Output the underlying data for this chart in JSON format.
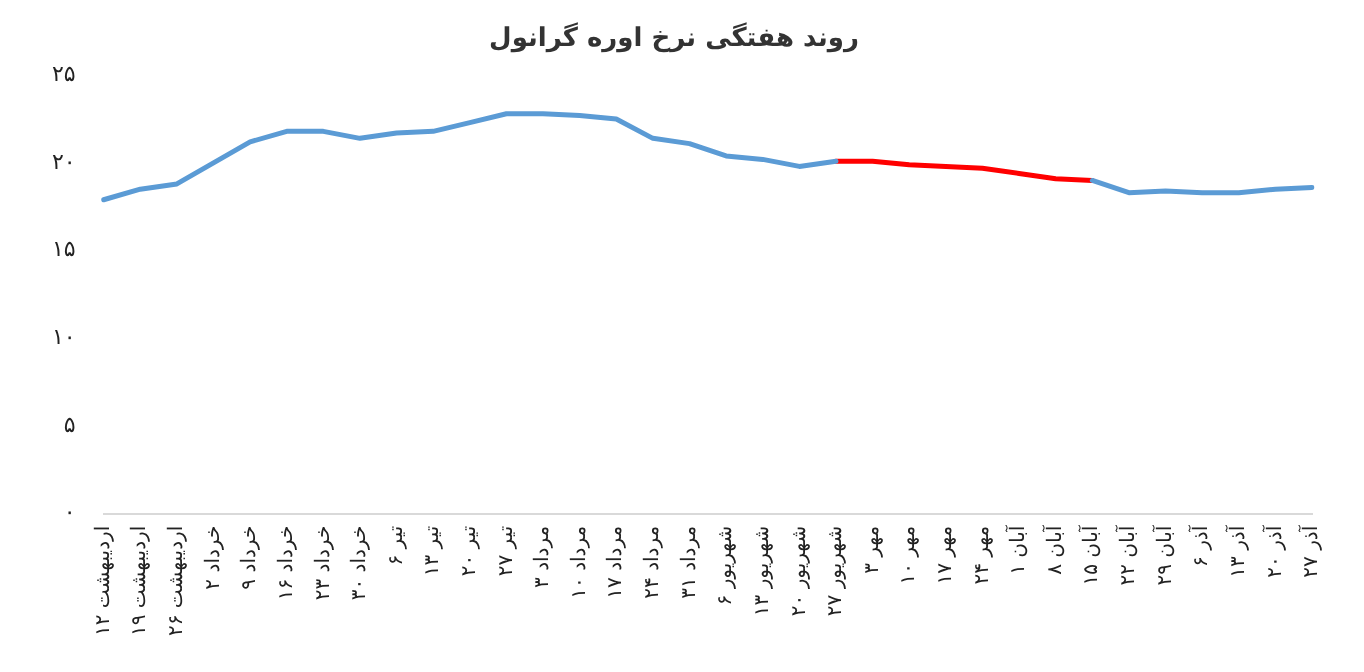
{
  "chart_data": {
    "type": "line",
    "title": "روند هفتگی نرخ اوره گرانول",
    "categories": [
      "۱۲ اردیبهشت",
      "۱۹ اردیبهشت",
      "۲۶ اردیبهشت",
      "۲ خرداد",
      "۹ خرداد",
      "۱۶ خرداد",
      "۲۳ خرداد",
      "۳۰ خرداد",
      "۶ تیر",
      "۱۳ تیر",
      "۲۰ تیر",
      "۲۷ تیر",
      "۳ مرداد",
      "۱۰ مرداد",
      "۱۷ مرداد",
      "۲۴ مرداد",
      "۳۱ مرداد",
      "۶ شهریور",
      "۱۳ شهریور",
      "۲۰ شهریور",
      "۲۷ شهریور",
      "۳ مهر",
      "۱۰ مهر",
      "۱۷ مهر",
      "۲۴ مهر",
      "۱ آبان",
      "۸ آبان",
      "۱۵ آبان",
      "۲۲ آبان",
      "۲۹ آبان",
      "۶ آذر",
      "۱۳ آذر",
      "۲۰ آذر",
      "۲۷ آذر"
    ],
    "series": [
      {
        "color": "#5b9bd5",
        "values": [
          17.9,
          18.5,
          18.8,
          20.0,
          21.2,
          21.8,
          21.8,
          21.4,
          21.7,
          21.8,
          22.3,
          22.8,
          22.8,
          22.7,
          22.5,
          21.4,
          21.1,
          20.4,
          20.2,
          19.8,
          20.1,
          null,
          null,
          null,
          null,
          null,
          null,
          19.0,
          18.3,
          18.4,
          18.3,
          18.3,
          18.5,
          18.6
        ]
      },
      {
        "color": "#ff0000",
        "values": [
          null,
          null,
          null,
          null,
          null,
          null,
          null,
          null,
          null,
          null,
          null,
          null,
          null,
          null,
          null,
          null,
          null,
          null,
          null,
          null,
          20.1,
          20.1,
          19.9,
          19.8,
          19.7,
          19.4,
          19.1,
          19.0,
          null,
          null,
          null,
          null,
          null,
          null
        ]
      }
    ],
    "ylim": [
      0,
      25
    ],
    "yticks": [
      {
        "value": 0,
        "label": "۰"
      },
      {
        "value": 5,
        "label": "۵"
      },
      {
        "value": 10,
        "label": "۱۰"
      },
      {
        "value": 15,
        "label": "۱۵"
      },
      {
        "value": 20,
        "label": "۲۰"
      },
      {
        "value": 25,
        "label": "۲۵"
      }
    ],
    "grid": false,
    "legend": false,
    "marker": "none",
    "line_style": "solid"
  }
}
